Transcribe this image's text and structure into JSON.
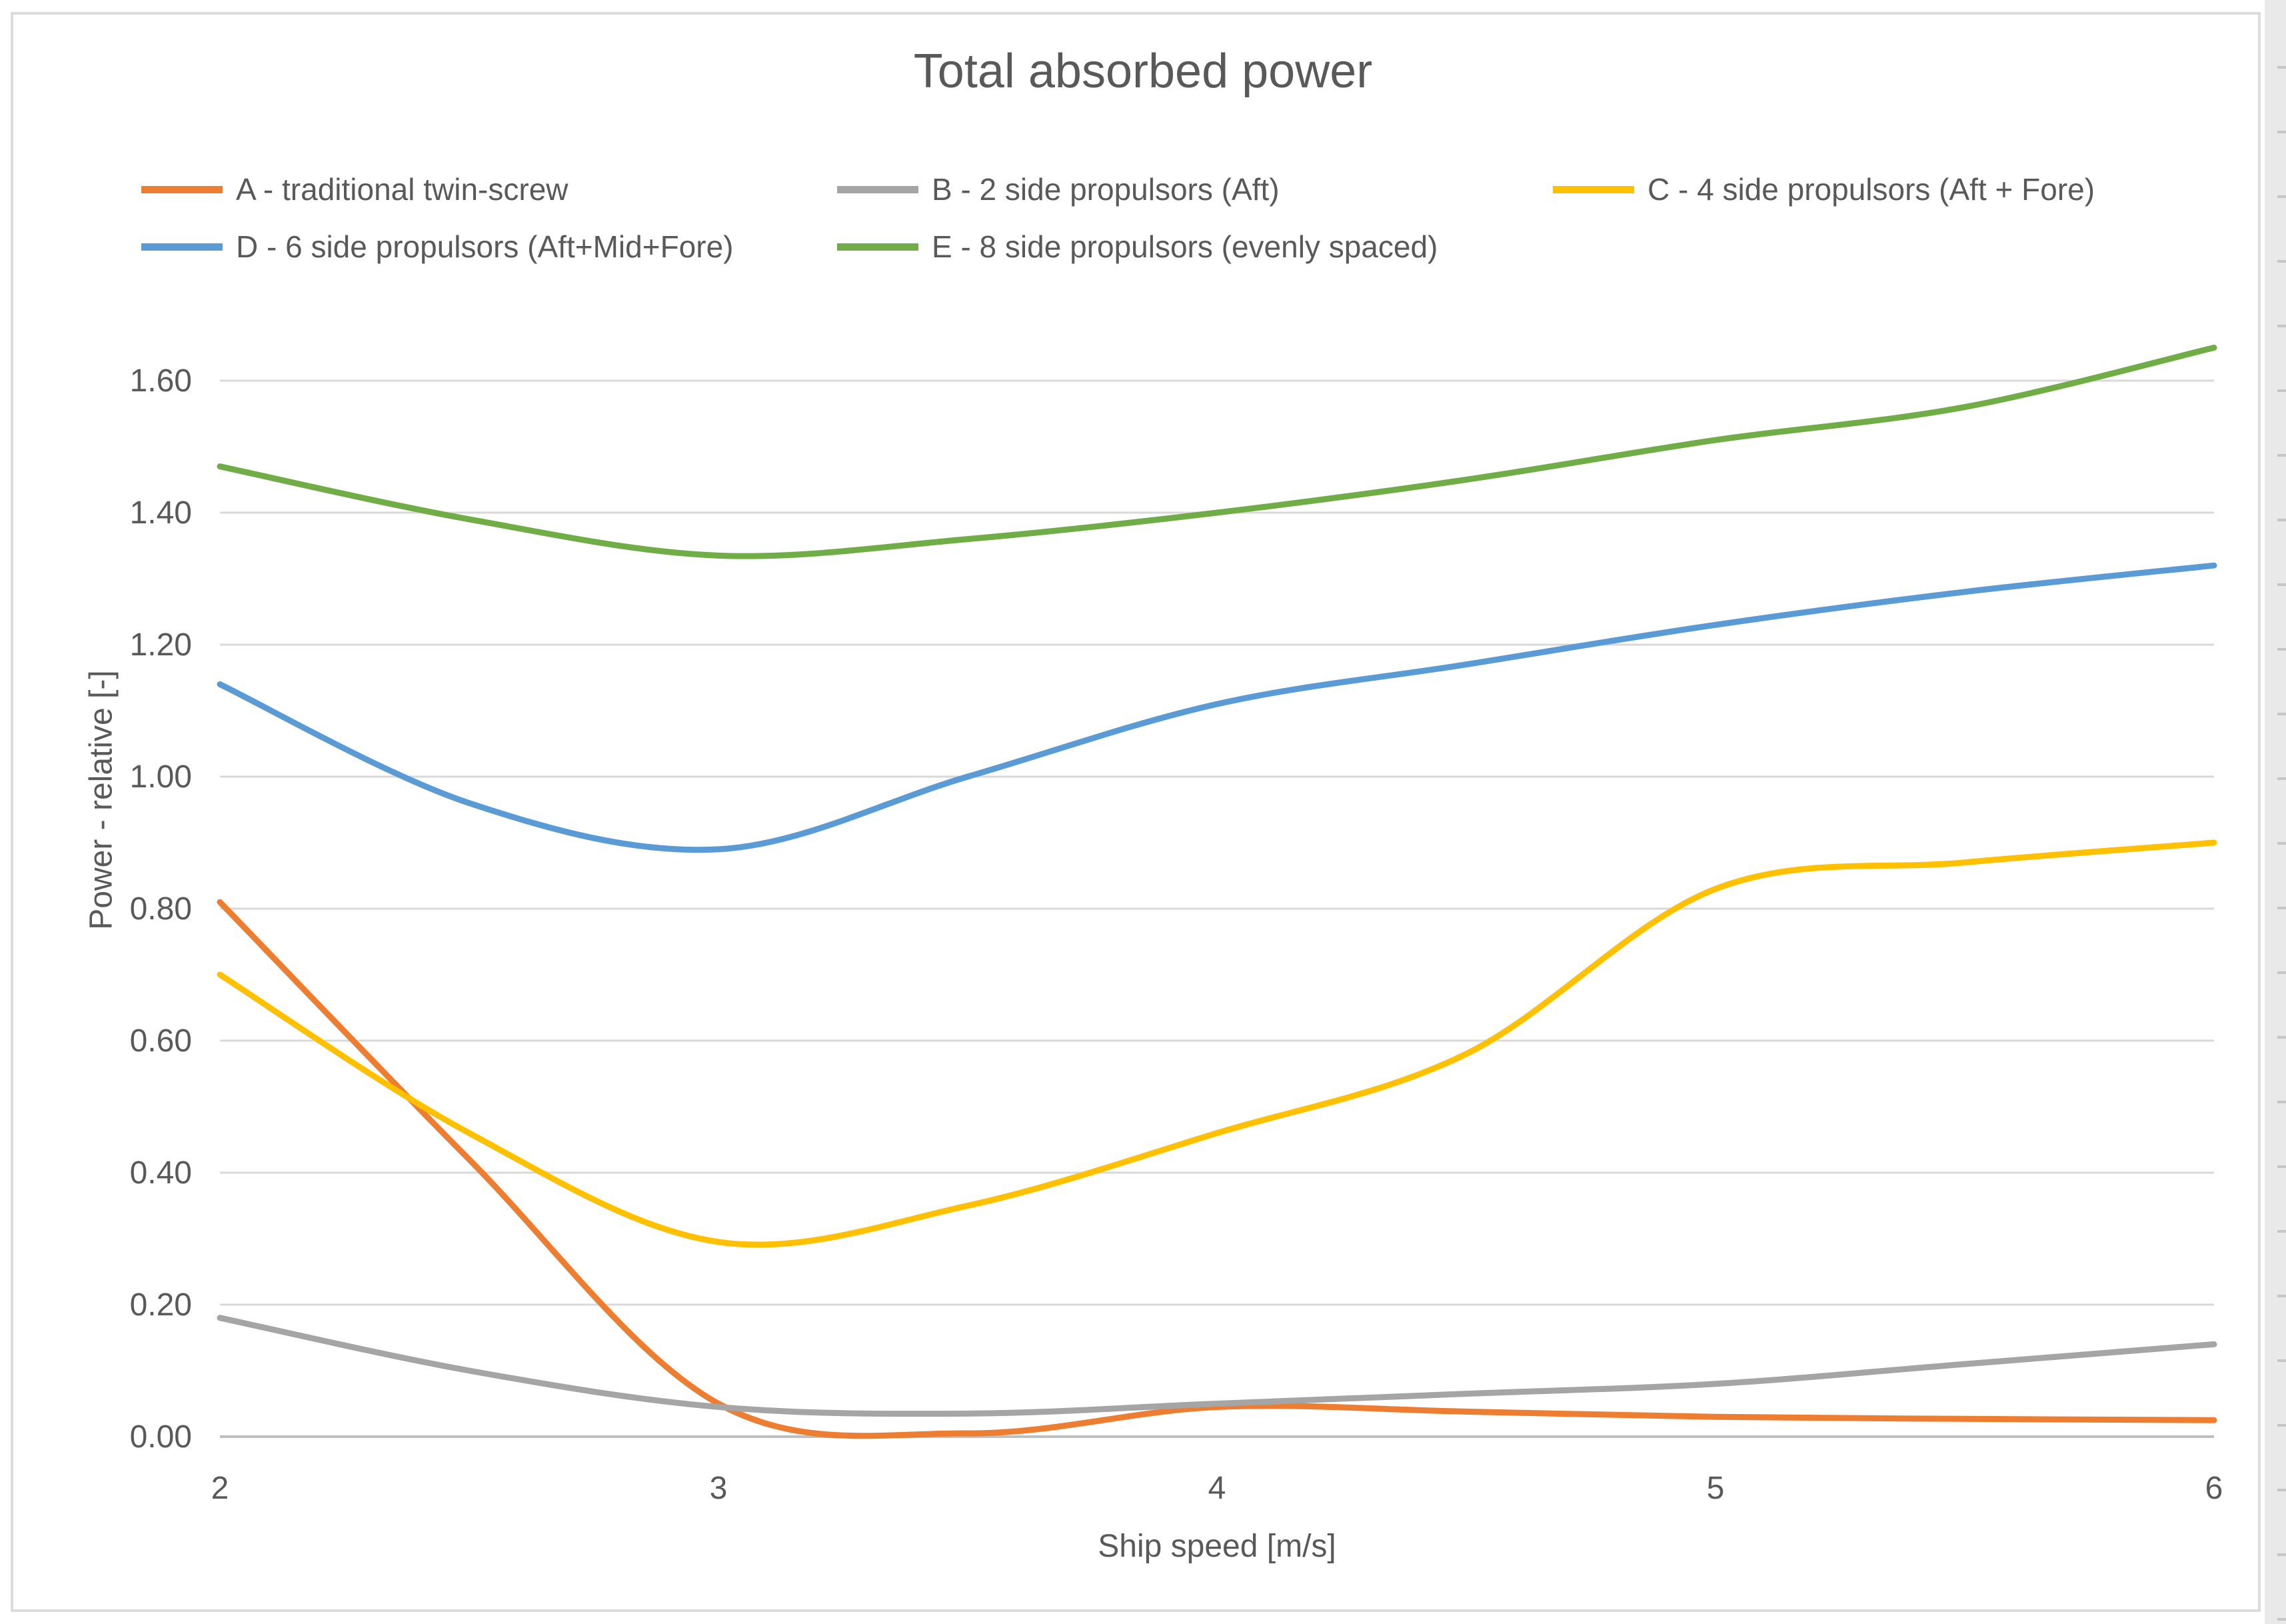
{
  "chart_data": {
    "type": "line",
    "title": "Total absorbed power",
    "xlabel": "Ship speed [m/s]",
    "ylabel": "Power - relative [-]",
    "xlim": [
      2,
      6
    ],
    "ylim": [
      0,
      1.7
    ],
    "grid": true,
    "legend_position": "top",
    "smooth": true,
    "x_ticks": [
      2,
      3,
      4,
      5,
      6
    ],
    "y_ticks": [
      {
        "value": 0.0,
        "label": "0.00"
      },
      {
        "value": 0.2,
        "label": "0.20"
      },
      {
        "value": 0.4,
        "label": "0.40"
      },
      {
        "value": 0.6,
        "label": "0.60"
      },
      {
        "value": 0.8,
        "label": "0.80"
      },
      {
        "value": 1.0,
        "label": "1.00"
      },
      {
        "value": 1.2,
        "label": "1.20"
      },
      {
        "value": 1.4,
        "label": "1.40"
      },
      {
        "value": 1.6,
        "label": "1.60"
      }
    ],
    "x": [
      2,
      2.5,
      3,
      3.5,
      4,
      4.5,
      5,
      5.5,
      6
    ],
    "series": [
      {
        "name": "A - traditional twin-screw",
        "color": "#ED7D31",
        "values": [
          0.81,
          0.42,
          0.05,
          0.005,
          0.045,
          0.038,
          0.03,
          0.027,
          0.025
        ]
      },
      {
        "name": "B - 2 side propulsors (Aft)",
        "color": "#A5A5A5",
        "values": [
          0.18,
          0.1,
          0.045,
          0.035,
          0.05,
          0.065,
          0.08,
          0.11,
          0.14
        ]
      },
      {
        "name": "C - 4 side propulsors (Aft + Fore)",
        "color": "#FFC000",
        "values": [
          0.7,
          0.46,
          0.295,
          0.35,
          0.46,
          0.58,
          0.83,
          0.87,
          0.9
        ]
      },
      {
        "name": "D - 6 side propulsors (Aft+Mid+Fore)",
        "color": "#5B9BD5",
        "values": [
          1.14,
          0.96,
          0.89,
          1.0,
          1.11,
          1.17,
          1.23,
          1.28,
          1.32
        ]
      },
      {
        "name": "E - 8 side propulsors (evenly spaced)",
        "color": "#70AD47",
        "values": [
          1.47,
          1.39,
          1.335,
          1.36,
          1.4,
          1.45,
          1.51,
          1.56,
          1.65
        ]
      }
    ],
    "colors": {
      "text": "#595959",
      "gridline": "#d9d9d9",
      "axis_line": "#bfbfbf"
    }
  }
}
